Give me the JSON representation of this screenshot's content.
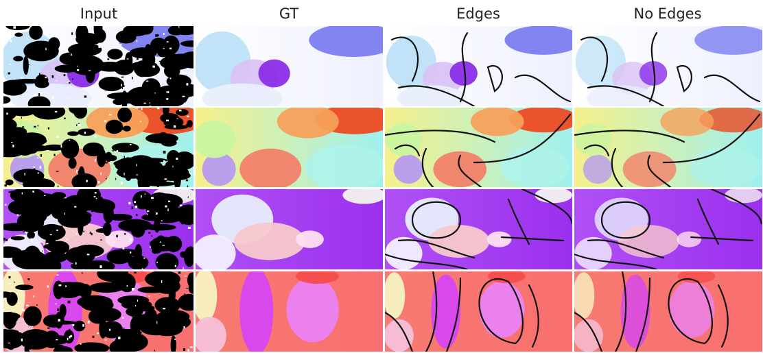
{
  "columns": [
    "Input",
    "GT",
    "Edges",
    "No Edges"
  ]
}
